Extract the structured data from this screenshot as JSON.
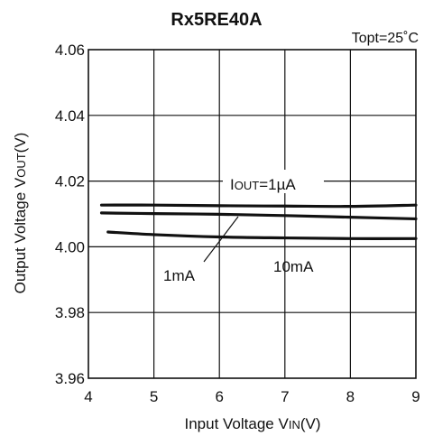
{
  "chart_data": {
    "type": "line",
    "title": "Rx5RE40A",
    "condition": "Topt=25˚C",
    "xlabel": "Input Voltage V",
    "xlabel_sub": "IN",
    "xlabel_unit": "(V)",
    "ylabel": "Output Voltage V",
    "ylabel_sub": "OUT",
    "ylabel_unit": "(V)",
    "xlim": [
      4,
      9
    ],
    "ylim": [
      3.96,
      4.06
    ],
    "xticks": [
      "4",
      "5",
      "6",
      "7",
      "8",
      "9"
    ],
    "yticks": [
      "4.06",
      "4.04",
      "4.02",
      "4.00",
      "3.98",
      "3.96"
    ],
    "grid": true,
    "series": [
      {
        "name": "IOUT=1µA",
        "label_main": "I",
        "label_sub": "OUT",
        "label_rest": "=1µA",
        "x": [
          4.2,
          5,
          6,
          7,
          8,
          9
        ],
        "y": [
          4.0127,
          4.0127,
          4.0125,
          4.0124,
          4.0123,
          4.0127
        ]
      },
      {
        "name": "1mA",
        "x": [
          4.2,
          5,
          6,
          7,
          8,
          9
        ],
        "y": [
          4.0103,
          4.0101,
          4.0099,
          4.0095,
          4.009,
          4.0085
        ]
      },
      {
        "name": "10mA",
        "x": [
          4.3,
          5,
          6,
          7,
          8,
          9
        ],
        "y": [
          4.0045,
          4.0037,
          4.003,
          4.0027,
          4.0025,
          4.0025
        ]
      }
    ]
  }
}
